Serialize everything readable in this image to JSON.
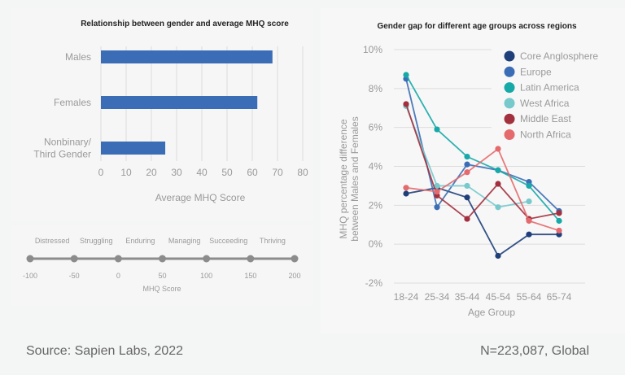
{
  "chart_data": [
    {
      "type": "bar",
      "orientation": "horizontal",
      "title": "Relationship between gender and average MHQ score",
      "categories": [
        "Males",
        "Females",
        "Nonbinary/\nThird Gender"
      ],
      "category_lines": [
        [
          "Males"
        ],
        [
          "Females"
        ],
        [
          "Nonbinary/",
          "Third Gender"
        ]
      ],
      "values": [
        68,
        62,
        25.5
      ],
      "xlabel": "Average MHQ Score",
      "ylabel": "",
      "xlim": [
        0,
        80
      ],
      "xticks": [
        0,
        10,
        20,
        30,
        40,
        50,
        60,
        70,
        80
      ],
      "grid": true,
      "color": "#3a6db5"
    },
    {
      "type": "scale",
      "title": "",
      "xlabel": "MHQ Score",
      "ticks": [
        -100,
        -50,
        0,
        50,
        100,
        150,
        200
      ],
      "tick_labels": [
        "-100",
        "-50",
        "0",
        "50",
        "100",
        "150",
        "200"
      ],
      "band_labels": [
        "Distressed",
        "Struggling",
        "Enduring",
        "Managing",
        "Succeeding",
        "Thriving"
      ],
      "color": "#8c8c8c"
    },
    {
      "type": "line",
      "title": "Gender gap for different age groups across regions",
      "x": [
        "18-24",
        "25-34",
        "35-44",
        "45-54",
        "55-64",
        "65-74"
      ],
      "xlabel": "Age Group",
      "ylabel_lines": [
        "MHQ percentage difference",
        "between Males and Females"
      ],
      "ylim": [
        -2,
        10
      ],
      "yticks": [
        -2,
        0,
        2,
        4,
        6,
        8,
        10
      ],
      "ytick_labels": [
        "-2%",
        "0%",
        "2%",
        "4%",
        "6%",
        "8%",
        "10%"
      ],
      "grid": true,
      "legend_position": "top-right",
      "series": [
        {
          "name": "Core Anglosphere",
          "color": "#1f3f7a",
          "values": [
            2.6,
            2.9,
            2.4,
            -0.6,
            0.5,
            0.5
          ]
        },
        {
          "name": "Europe",
          "color": "#3a6db5",
          "values": [
            8.5,
            1.9,
            4.1,
            3.8,
            3.2,
            1.7
          ]
        },
        {
          "name": "Latin America",
          "color": "#17a8a8",
          "values": [
            8.7,
            5.9,
            4.5,
            3.8,
            3.0,
            1.2
          ]
        },
        {
          "name": "West Africa",
          "color": "#77c9cc",
          "values": [
            7.1,
            3.0,
            3.0,
            1.9,
            2.2,
            null
          ]
        },
        {
          "name": "Middle East",
          "color": "#a3303e",
          "values": [
            7.2,
            2.5,
            1.3,
            3.1,
            1.3,
            1.6
          ]
        },
        {
          "name": "North Africa",
          "color": "#e46a6e",
          "values": [
            2.9,
            2.7,
            3.7,
            4.9,
            1.2,
            0.7
          ]
        }
      ]
    }
  ],
  "footer": {
    "source": "Source: Sapien Labs, 2022",
    "sample": "N=223,087, Global"
  }
}
